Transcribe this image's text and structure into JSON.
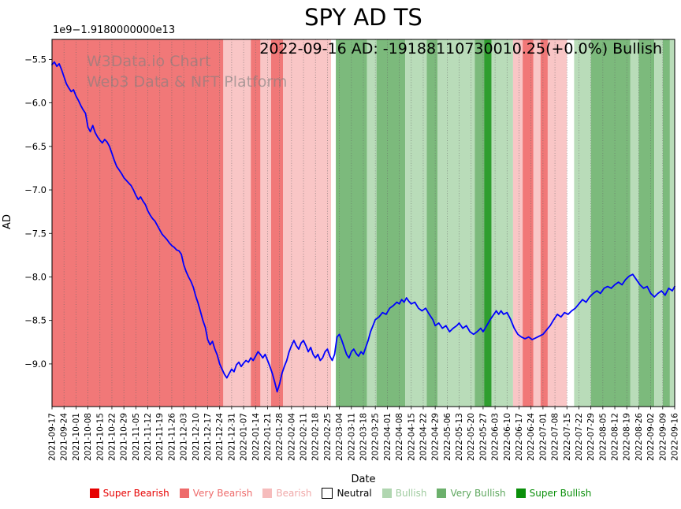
{
  "chart_data": {
    "type": "line",
    "title": "SPY AD TS",
    "annotation": "2022-09-16 AD: -19188110730010.25(+0.0%) Bullish",
    "y_offset_label": "1e9−1.9180000000e13",
    "watermark_line1": "W3Data.io Chart",
    "watermark_line2": "Web3 Data & NFT Platform",
    "xlabel": "Date",
    "ylabel": "AD",
    "xlim": [
      0,
      52
    ],
    "ylim": [
      -9.49,
      -5.27
    ],
    "grid_color": "#666666",
    "line_color": "#0000ff",
    "y_ticks": [
      -5.5,
      -6.0,
      -6.5,
      -7.0,
      -7.5,
      -8.0,
      -8.5,
      -9.0
    ],
    "y_tick_labels": [
      "−5.5",
      "−6.0",
      "−6.5",
      "−7.0",
      "−7.5",
      "−8.0",
      "−8.5",
      "−9.0"
    ],
    "x_tick_labels": [
      "2021-09-17",
      "2021-09-24",
      "2021-10-01",
      "2021-10-08",
      "2021-10-15",
      "2021-10-22",
      "2021-10-29",
      "2021-11-05",
      "2021-11-12",
      "2021-11-19",
      "2021-11-26",
      "2021-12-03",
      "2021-12-10",
      "2021-12-17",
      "2021-12-24",
      "2021-12-31",
      "2022-01-07",
      "2022-01-14",
      "2022-01-21",
      "2022-01-28",
      "2022-02-04",
      "2022-02-11",
      "2022-02-18",
      "2022-02-25",
      "2022-03-04",
      "2022-03-11",
      "2022-03-18",
      "2022-03-25",
      "2022-04-01",
      "2022-04-08",
      "2022-04-15",
      "2022-04-22",
      "2022-04-29",
      "2022-05-06",
      "2022-05-13",
      "2022-05-20",
      "2022-05-27",
      "2022-06-03",
      "2022-06-10",
      "2022-06-17",
      "2022-06-24",
      "2022-07-01",
      "2022-07-08",
      "2022-07-15",
      "2022-07-22",
      "2022-07-29",
      "2022-08-05",
      "2022-08-12",
      "2022-08-19",
      "2022-08-26",
      "2022-09-02",
      "2022-09-09",
      "2022-09-16"
    ],
    "band_colors": {
      "super_bearish": "#e60000",
      "very_bearish": "#f17878",
      "bearish": "#f9c6c6",
      "neutral": "#ffffff",
      "bullish": "#b9dcb9",
      "very_bullish": "#7cba7c",
      "super_bullish": "#2f9e2f"
    },
    "bands": [
      {
        "start": 0,
        "end": 14.3,
        "level": "very_bearish"
      },
      {
        "start": 14.3,
        "end": 16.6,
        "level": "bearish"
      },
      {
        "start": 16.6,
        "end": 17.4,
        "level": "very_bearish"
      },
      {
        "start": 17.4,
        "end": 18.3,
        "level": "bearish"
      },
      {
        "start": 18.3,
        "end": 19.3,
        "level": "very_bearish"
      },
      {
        "start": 19.3,
        "end": 23.3,
        "level": "bearish"
      },
      {
        "start": 23.3,
        "end": 23.7,
        "level": "neutral"
      },
      {
        "start": 23.7,
        "end": 26.3,
        "level": "very_bullish"
      },
      {
        "start": 26.3,
        "end": 27.1,
        "level": "bullish"
      },
      {
        "start": 27.1,
        "end": 29.5,
        "level": "very_bullish"
      },
      {
        "start": 29.5,
        "end": 31.3,
        "level": "bullish"
      },
      {
        "start": 31.3,
        "end": 32.2,
        "level": "very_bullish"
      },
      {
        "start": 32.2,
        "end": 35.3,
        "level": "bullish"
      },
      {
        "start": 35.3,
        "end": 36.1,
        "level": "very_bullish"
      },
      {
        "start": 36.1,
        "end": 36.7,
        "level": "super_bullish"
      },
      {
        "start": 36.7,
        "end": 38.5,
        "level": "bullish"
      },
      {
        "start": 38.5,
        "end": 39.3,
        "level": "bearish"
      },
      {
        "start": 39.3,
        "end": 40.2,
        "level": "very_bearish"
      },
      {
        "start": 40.2,
        "end": 40.8,
        "level": "bearish"
      },
      {
        "start": 40.8,
        "end": 41.4,
        "level": "very_bearish"
      },
      {
        "start": 41.4,
        "end": 43.0,
        "level": "bearish"
      },
      {
        "start": 43.0,
        "end": 43.6,
        "level": "neutral"
      },
      {
        "start": 43.6,
        "end": 45.0,
        "level": "bullish"
      },
      {
        "start": 45.0,
        "end": 48.3,
        "level": "very_bullish"
      },
      {
        "start": 48.3,
        "end": 49.0,
        "level": "bullish"
      },
      {
        "start": 49.0,
        "end": 50.3,
        "level": "very_bullish"
      },
      {
        "start": 50.3,
        "end": 51.0,
        "level": "bullish"
      },
      {
        "start": 51.0,
        "end": 51.6,
        "level": "very_bullish"
      },
      {
        "start": 51.6,
        "end": 52.0,
        "level": "bullish"
      }
    ],
    "series": [
      {
        "name": "AD",
        "points": [
          [
            0,
            -5.56
          ],
          [
            0.2,
            -5.53
          ],
          [
            0.4,
            -5.58
          ],
          [
            0.6,
            -5.55
          ],
          [
            0.8,
            -5.62
          ],
          [
            1,
            -5.7
          ],
          [
            1.2,
            -5.78
          ],
          [
            1.4,
            -5.83
          ],
          [
            1.6,
            -5.87
          ],
          [
            1.8,
            -5.85
          ],
          [
            2,
            -5.92
          ],
          [
            2.2,
            -5.97
          ],
          [
            2.4,
            -6.03
          ],
          [
            2.6,
            -6.08
          ],
          [
            2.8,
            -6.12
          ],
          [
            3,
            -6.28
          ],
          [
            3.2,
            -6.33
          ],
          [
            3.4,
            -6.26
          ],
          [
            3.6,
            -6.34
          ],
          [
            3.8,
            -6.39
          ],
          [
            4,
            -6.43
          ],
          [
            4.2,
            -6.46
          ],
          [
            4.4,
            -6.42
          ],
          [
            4.6,
            -6.45
          ],
          [
            4.8,
            -6.5
          ],
          [
            5,
            -6.58
          ],
          [
            5.2,
            -6.66
          ],
          [
            5.4,
            -6.73
          ],
          [
            5.6,
            -6.77
          ],
          [
            5.8,
            -6.81
          ],
          [
            6,
            -6.86
          ],
          [
            6.2,
            -6.89
          ],
          [
            6.4,
            -6.92
          ],
          [
            6.6,
            -6.95
          ],
          [
            6.8,
            -7.0
          ],
          [
            7,
            -7.06
          ],
          [
            7.2,
            -7.11
          ],
          [
            7.4,
            -7.08
          ],
          [
            7.6,
            -7.13
          ],
          [
            7.8,
            -7.17
          ],
          [
            8,
            -7.24
          ],
          [
            8.2,
            -7.29
          ],
          [
            8.4,
            -7.33
          ],
          [
            8.6,
            -7.36
          ],
          [
            8.8,
            -7.41
          ],
          [
            9,
            -7.46
          ],
          [
            9.2,
            -7.51
          ],
          [
            9.4,
            -7.54
          ],
          [
            9.6,
            -7.57
          ],
          [
            9.8,
            -7.61
          ],
          [
            10,
            -7.64
          ],
          [
            10.2,
            -7.66
          ],
          [
            10.4,
            -7.69
          ],
          [
            10.6,
            -7.7
          ],
          [
            10.8,
            -7.74
          ],
          [
            11,
            -7.86
          ],
          [
            11.2,
            -7.94
          ],
          [
            11.4,
            -8.0
          ],
          [
            11.6,
            -8.05
          ],
          [
            11.8,
            -8.12
          ],
          [
            12,
            -8.22
          ],
          [
            12.2,
            -8.3
          ],
          [
            12.4,
            -8.4
          ],
          [
            12.6,
            -8.5
          ],
          [
            12.8,
            -8.58
          ],
          [
            13,
            -8.72
          ],
          [
            13.2,
            -8.78
          ],
          [
            13.4,
            -8.74
          ],
          [
            13.6,
            -8.83
          ],
          [
            13.8,
            -8.9
          ],
          [
            14,
            -9.0
          ],
          [
            14.2,
            -9.06
          ],
          [
            14.4,
            -9.12
          ],
          [
            14.6,
            -9.16
          ],
          [
            14.8,
            -9.11
          ],
          [
            15,
            -9.06
          ],
          [
            15.2,
            -9.09
          ],
          [
            15.4,
            -9.01
          ],
          [
            15.6,
            -8.98
          ],
          [
            15.8,
            -9.03
          ],
          [
            16,
            -8.99
          ],
          [
            16.2,
            -8.96
          ],
          [
            16.4,
            -8.98
          ],
          [
            16.6,
            -8.93
          ],
          [
            16.8,
            -8.96
          ],
          [
            17,
            -8.91
          ],
          [
            17.2,
            -8.86
          ],
          [
            17.4,
            -8.89
          ],
          [
            17.6,
            -8.93
          ],
          [
            17.8,
            -8.89
          ],
          [
            18,
            -8.96
          ],
          [
            18.2,
            -9.03
          ],
          [
            18.4,
            -9.11
          ],
          [
            18.6,
            -9.21
          ],
          [
            18.8,
            -9.32
          ],
          [
            19,
            -9.23
          ],
          [
            19.2,
            -9.11
          ],
          [
            19.4,
            -9.03
          ],
          [
            19.6,
            -8.96
          ],
          [
            19.8,
            -8.86
          ],
          [
            20,
            -8.79
          ],
          [
            20.2,
            -8.73
          ],
          [
            20.4,
            -8.79
          ],
          [
            20.6,
            -8.83
          ],
          [
            20.8,
            -8.76
          ],
          [
            21,
            -8.73
          ],
          [
            21.2,
            -8.79
          ],
          [
            21.4,
            -8.86
          ],
          [
            21.6,
            -8.81
          ],
          [
            21.8,
            -8.89
          ],
          [
            22,
            -8.93
          ],
          [
            22.2,
            -8.89
          ],
          [
            22.4,
            -8.96
          ],
          [
            22.6,
            -8.93
          ],
          [
            22.8,
            -8.86
          ],
          [
            23,
            -8.83
          ],
          [
            23.2,
            -8.91
          ],
          [
            23.4,
            -8.96
          ],
          [
            23.6,
            -8.89
          ],
          [
            23.8,
            -8.69
          ],
          [
            24,
            -8.66
          ],
          [
            24.2,
            -8.73
          ],
          [
            24.4,
            -8.81
          ],
          [
            24.6,
            -8.89
          ],
          [
            24.8,
            -8.93
          ],
          [
            25,
            -8.86
          ],
          [
            25.2,
            -8.83
          ],
          [
            25.4,
            -8.88
          ],
          [
            25.6,
            -8.91
          ],
          [
            25.8,
            -8.86
          ],
          [
            26,
            -8.89
          ],
          [
            26.2,
            -8.81
          ],
          [
            26.4,
            -8.73
          ],
          [
            26.6,
            -8.63
          ],
          [
            26.8,
            -8.56
          ],
          [
            27,
            -8.49
          ],
          [
            27.3,
            -8.46
          ],
          [
            27.6,
            -8.41
          ],
          [
            27.9,
            -8.43
          ],
          [
            28.2,
            -8.36
          ],
          [
            28.5,
            -8.33
          ],
          [
            28.8,
            -8.29
          ],
          [
            29,
            -8.31
          ],
          [
            29.2,
            -8.26
          ],
          [
            29.4,
            -8.29
          ],
          [
            29.6,
            -8.24
          ],
          [
            29.8,
            -8.28
          ],
          [
            30,
            -8.31
          ],
          [
            30.3,
            -8.29
          ],
          [
            30.6,
            -8.36
          ],
          [
            30.9,
            -8.39
          ],
          [
            31.2,
            -8.36
          ],
          [
            31.5,
            -8.43
          ],
          [
            31.8,
            -8.49
          ],
          [
            32,
            -8.56
          ],
          [
            32.3,
            -8.53
          ],
          [
            32.6,
            -8.59
          ],
          [
            32.9,
            -8.56
          ],
          [
            33.2,
            -8.63
          ],
          [
            33.5,
            -8.59
          ],
          [
            33.8,
            -8.56
          ],
          [
            34,
            -8.53
          ],
          [
            34.3,
            -8.59
          ],
          [
            34.6,
            -8.56
          ],
          [
            34.9,
            -8.63
          ],
          [
            35.2,
            -8.66
          ],
          [
            35.5,
            -8.63
          ],
          [
            35.8,
            -8.59
          ],
          [
            36,
            -8.63
          ],
          [
            36.3,
            -8.56
          ],
          [
            36.6,
            -8.49
          ],
          [
            36.9,
            -8.43
          ],
          [
            37.1,
            -8.39
          ],
          [
            37.3,
            -8.43
          ],
          [
            37.5,
            -8.39
          ],
          [
            37.7,
            -8.43
          ],
          [
            38,
            -8.41
          ],
          [
            38.3,
            -8.49
          ],
          [
            38.6,
            -8.59
          ],
          [
            38.9,
            -8.66
          ],
          [
            39.2,
            -8.69
          ],
          [
            39.5,
            -8.71
          ],
          [
            39.8,
            -8.69
          ],
          [
            40.1,
            -8.72
          ],
          [
            40.4,
            -8.7
          ],
          [
            40.7,
            -8.68
          ],
          [
            41,
            -8.66
          ],
          [
            41.3,
            -8.61
          ],
          [
            41.6,
            -8.56
          ],
          [
            41.9,
            -8.49
          ],
          [
            42.2,
            -8.43
          ],
          [
            42.5,
            -8.46
          ],
          [
            42.8,
            -8.41
          ],
          [
            43.1,
            -8.43
          ],
          [
            43.4,
            -8.39
          ],
          [
            43.7,
            -8.36
          ],
          [
            44,
            -8.31
          ],
          [
            44.3,
            -8.26
          ],
          [
            44.6,
            -8.29
          ],
          [
            44.9,
            -8.23
          ],
          [
            45.2,
            -8.19
          ],
          [
            45.5,
            -8.16
          ],
          [
            45.8,
            -8.19
          ],
          [
            46.1,
            -8.13
          ],
          [
            46.4,
            -8.11
          ],
          [
            46.7,
            -8.13
          ],
          [
            47,
            -8.09
          ],
          [
            47.3,
            -8.06
          ],
          [
            47.6,
            -8.09
          ],
          [
            47.9,
            -8.03
          ],
          [
            48.2,
            -7.99
          ],
          [
            48.5,
            -7.97
          ],
          [
            48.8,
            -8.03
          ],
          [
            49.1,
            -8.09
          ],
          [
            49.4,
            -8.13
          ],
          [
            49.7,
            -8.11
          ],
          [
            50,
            -8.19
          ],
          [
            50.3,
            -8.23
          ],
          [
            50.6,
            -8.19
          ],
          [
            50.9,
            -8.16
          ],
          [
            51.2,
            -8.21
          ],
          [
            51.5,
            -8.13
          ],
          [
            51.8,
            -8.16
          ],
          [
            52,
            -8.11
          ]
        ]
      }
    ],
    "legend": {
      "position": "bottom",
      "items": [
        {
          "label": "Super Bearish",
          "color": "#e60000",
          "text_color": "#e60000"
        },
        {
          "label": "Very Bearish",
          "color": "#ee6a6a",
          "text_color": "#ee6a6a"
        },
        {
          "label": "Bearish",
          "color": "#f6bcbc",
          "text_color": "#f0a8a8"
        },
        {
          "label": "Neutral",
          "color": "#ffffff",
          "text_color": "#000000"
        },
        {
          "label": "Bullish",
          "color": "#b0d6b0",
          "text_color": "#9fcb9f"
        },
        {
          "label": "Very Bullish",
          "color": "#6cb06c",
          "text_color": "#5ea75e"
        },
        {
          "label": "Super Bullish",
          "color": "#0a8f0a",
          "text_color": "#0a8f0a"
        }
      ]
    }
  }
}
